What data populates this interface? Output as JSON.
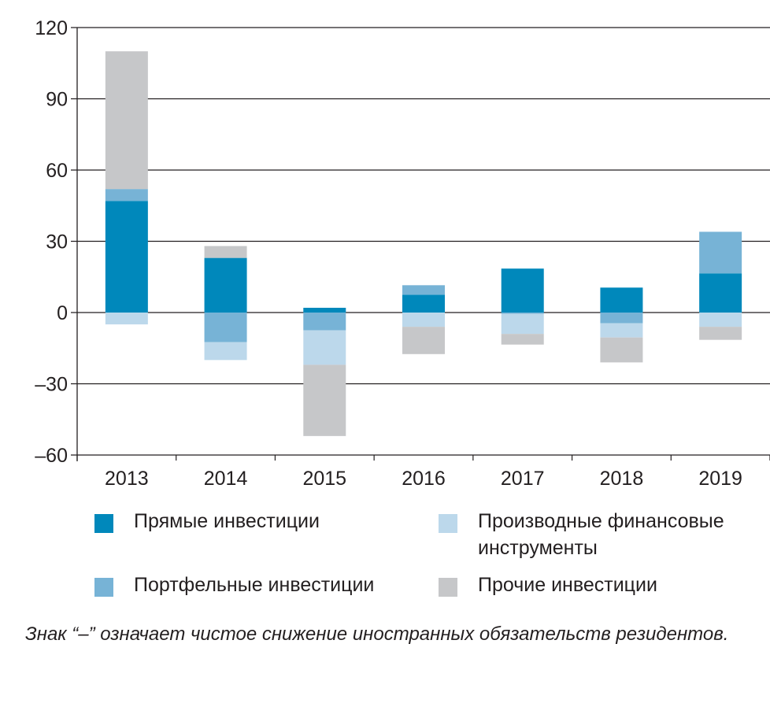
{
  "chart_data": {
    "type": "bar",
    "stacked": true,
    "title": "",
    "xlabel": "",
    "ylabel": "",
    "ylim": [
      -60,
      120
    ],
    "yticks": [
      120,
      90,
      60,
      30,
      0,
      -30,
      -60
    ],
    "ytick_labels": [
      "120",
      "90",
      "60",
      "30",
      "0",
      "–30",
      "–60"
    ],
    "grid": true,
    "categories": [
      "2013",
      "2014",
      "2015",
      "2016",
      "2017",
      "2018",
      "2019"
    ],
    "series": [
      {
        "name": "Прямые инвестиции",
        "color": "#0088bb",
        "values": [
          47,
          23,
          2,
          7.5,
          18.5,
          10.5,
          16.5
        ]
      },
      {
        "name": "Портфельные инвестиции",
        "color": "#77b3d6",
        "values": [
          5,
          -12.5,
          -7.5,
          4,
          -0.5,
          -4.5,
          17.5
        ]
      },
      {
        "name": "Производные финансовые инструменты",
        "color": "#bcd8eb",
        "values": [
          -5,
          -7.5,
          -14.5,
          -6,
          -8.5,
          -6,
          -6
        ]
      },
      {
        "name": "Прочие инвестиции",
        "color": "#c6c7c9",
        "values": [
          58,
          5,
          -30,
          -11.5,
          -4.5,
          -10.5,
          -5.5
        ]
      }
    ],
    "legend": {
      "placement": "bottom",
      "items": [
        {
          "line1": "Прямые инвестиции"
        },
        {
          "line1": "Производные финансовые",
          "line2": "инструменты"
        },
        {
          "line1": "Портфельные инвестиции"
        },
        {
          "line1": "Прочие инвестиции"
        }
      ]
    },
    "note": "Знак “–” означает чистое снижение иностранных обязательств резидентов."
  }
}
